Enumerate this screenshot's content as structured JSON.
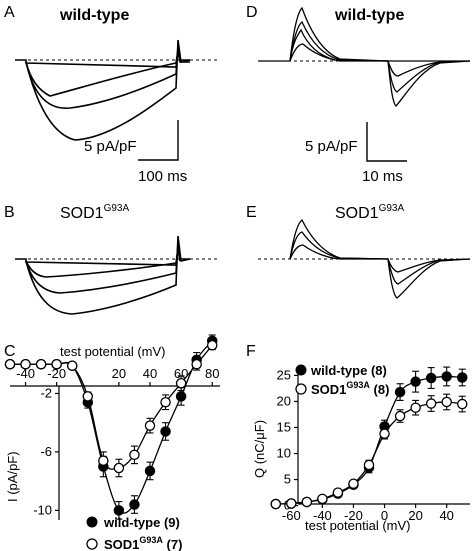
{
  "panels": {
    "A": {
      "letter": "A",
      "label": "wild-type"
    },
    "B": {
      "letter": "B",
      "label_main": "SOD1",
      "label_sup": "G93A"
    },
    "C": {
      "letter": "C"
    },
    "D": {
      "letter": "D",
      "label": "wild-type"
    },
    "E": {
      "letter": "E",
      "label_main": "SOD1",
      "label_sup": "G93A"
    },
    "F": {
      "letter": "F"
    }
  },
  "scalebars": {
    "A": {
      "y_label": "5 pA/pF",
      "x_label": "100 ms"
    },
    "D": {
      "y_label": "5 pA/pF",
      "x_label": "10 ms"
    }
  },
  "colors": {
    "line": "#000000",
    "open_marker_fill": "#ffffff",
    "filled_marker": "#000000"
  },
  "chart_data": [
    {
      "panel": "C",
      "type": "line",
      "xlabel": "test potential (mV)",
      "ylabel": "I (pA/pF)",
      "xlim": [
        -50,
        85
      ],
      "ylim": [
        -11,
        2
      ],
      "xticks": [
        -40,
        -20,
        20,
        40,
        60,
        80
      ],
      "yticks": [
        -2,
        -6,
        -10
      ],
      "legend_position": "bottom-right",
      "series": [
        {
          "name": "wild-type",
          "n": "(9)",
          "marker": "filled",
          "x": [
            -50,
            -40,
            -30,
            -20,
            -10,
            0,
            10,
            20,
            30,
            40,
            50,
            60,
            70,
            80
          ],
          "y": [
            0,
            0,
            0,
            0,
            -0.1,
            -2.6,
            -7.0,
            -10.0,
            -9.6,
            -7.3,
            -4.6,
            -2.2,
            0.3,
            1.6
          ],
          "err": [
            0,
            0,
            0,
            0,
            0.1,
            0.4,
            0.7,
            0.6,
            0.6,
            0.6,
            0.6,
            0.6,
            0.5,
            0.4
          ]
        },
        {
          "name_main": "SOD1",
          "name_sup": "G93A",
          "n": "(7)",
          "marker": "open",
          "x": [
            -50,
            -40,
            -30,
            -20,
            -10,
            0,
            10,
            20,
            30,
            40,
            50,
            60,
            70,
            80
          ],
          "y": [
            0,
            0,
            0,
            0,
            -0.1,
            -2.2,
            -6.6,
            -7.1,
            -6.2,
            -4.2,
            -2.6,
            -1.3,
            0.0,
            1.3
          ],
          "err": [
            0,
            0,
            0,
            0,
            0.1,
            0.3,
            0.6,
            0.6,
            0.6,
            0.5,
            0.5,
            0.5,
            0.4,
            0.3
          ]
        }
      ]
    },
    {
      "panel": "F",
      "type": "line",
      "xlabel": "test potential (mV)",
      "ylabel": "Q (nC/μF)",
      "xlim": [
        -75,
        55
      ],
      "ylim": [
        -2,
        27
      ],
      "xticks": [
        -60,
        -40,
        -20,
        0,
        20,
        40
      ],
      "yticks": [
        0,
        5,
        10,
        15,
        20,
        25
      ],
      "legend_position": "top-left",
      "series": [
        {
          "name": "wild-type",
          "n": "(8)",
          "marker": "filled",
          "x": [
            -70,
            -60,
            -50,
            -40,
            -30,
            -20,
            -10,
            0,
            10,
            20,
            30,
            40,
            50
          ],
          "y": [
            0.3,
            0.4,
            0.7,
            1.2,
            2.3,
            4.0,
            7.3,
            15.2,
            21.8,
            23.8,
            24.5,
            24.8,
            24.6
          ],
          "err": [
            0.2,
            0.2,
            0.3,
            0.4,
            0.5,
            0.6,
            1.0,
            1.2,
            1.6,
            2.0,
            2.0,
            1.8,
            1.6
          ]
        },
        {
          "name_main": "SOD1",
          "name_sup": "G93A",
          "n": "(8)",
          "marker": "open",
          "x": [
            -70,
            -60,
            -50,
            -40,
            -30,
            -20,
            -10,
            0,
            10,
            20,
            30,
            40,
            50
          ],
          "y": [
            0.3,
            0.4,
            0.7,
            1.3,
            2.5,
            4.2,
            7.8,
            13.8,
            17.2,
            18.8,
            19.6,
            19.9,
            19.5
          ],
          "err": [
            0.2,
            0.2,
            0.3,
            0.4,
            0.5,
            0.6,
            0.9,
            1.0,
            1.2,
            1.4,
            1.5,
            1.5,
            1.5
          ]
        }
      ]
    }
  ]
}
